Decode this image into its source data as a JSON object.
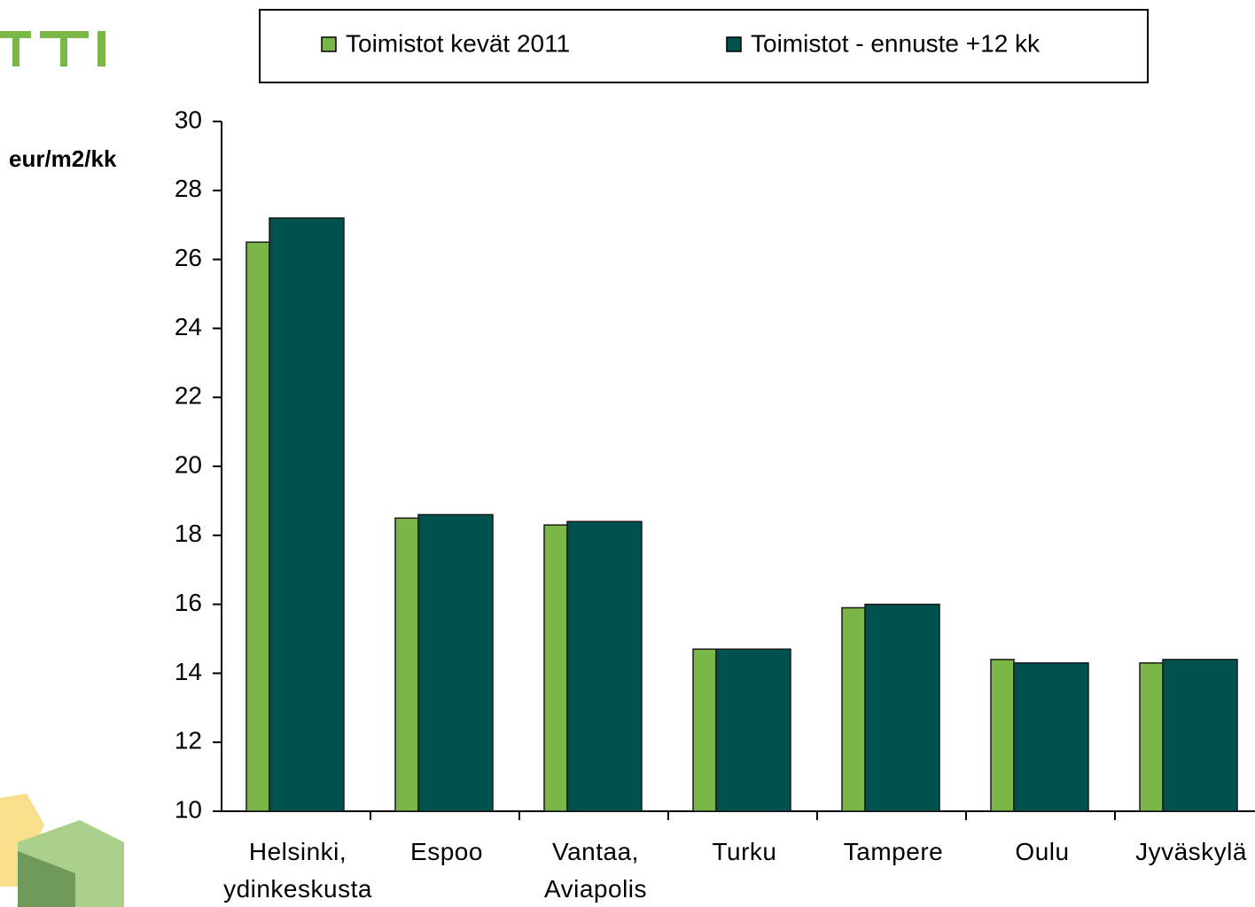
{
  "chart_data": {
    "type": "bar",
    "y_label": "eur/m2/kk",
    "categories": [
      "Helsinki,\nydinkeskusta",
      "Espoo",
      "Vantaa,\nAviapolis",
      "Turku",
      "Tampere",
      "Oulu",
      "Jyväskylä"
    ],
    "series": [
      {
        "name": "Toimistot kevät 2011",
        "color": "#7ab648",
        "values": [
          26.5,
          18.5,
          18.3,
          14.7,
          15.9,
          14.4,
          14.3
        ]
      },
      {
        "name": "Toimistot - ennuste +12 kk",
        "color": "#00524f",
        "values": [
          27.2,
          18.6,
          18.4,
          14.7,
          16.0,
          14.3,
          14.4
        ]
      }
    ],
    "ylim": [
      10,
      30
    ],
    "yticks": [
      10,
      12,
      14,
      16,
      18,
      20,
      22,
      24,
      26,
      28,
      30
    ],
    "legend": "top"
  }
}
